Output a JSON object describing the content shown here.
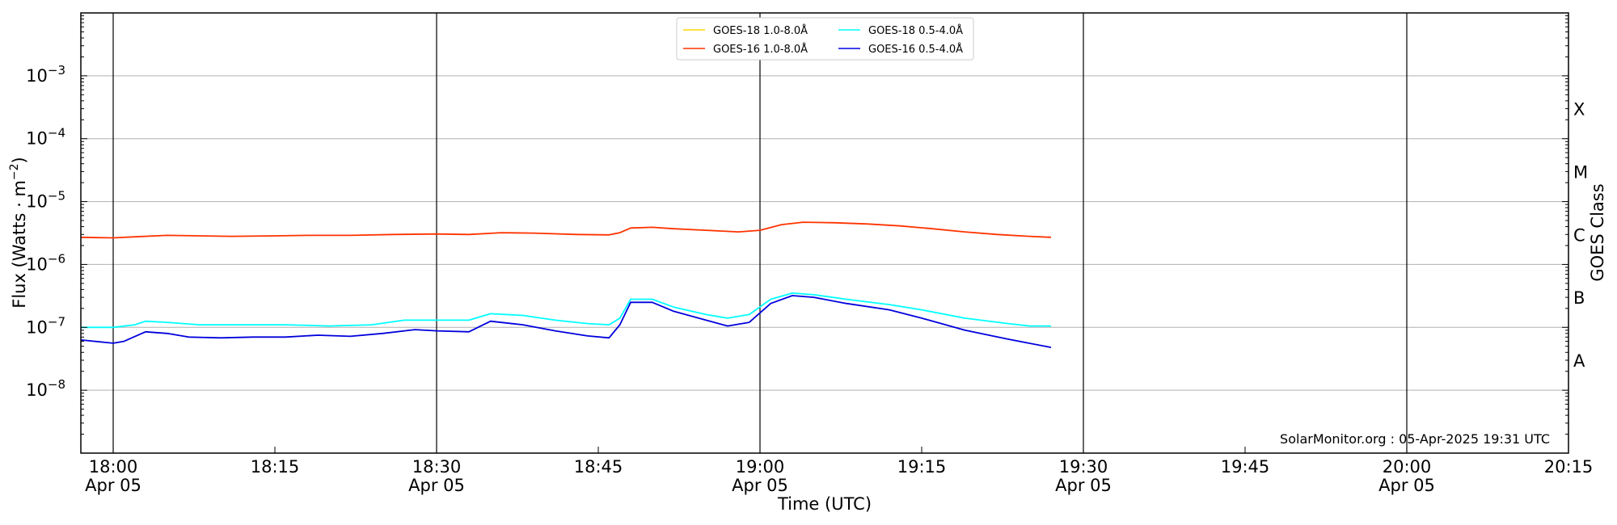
{
  "chart_data": {
    "type": "line",
    "xlabel": "Time (UTC)",
    "ylabel": "Flux (Watts · m",
    "ylabel_sup": "−2",
    "ylabel_close": ")",
    "right_label": "GOES Class",
    "y_scale": "log",
    "ylim": [
      1e-09,
      0.01
    ],
    "y_ticks": [
      {
        "value": 1e-08,
        "base": "10",
        "exp": "−8"
      },
      {
        "value": 1e-07,
        "base": "10",
        "exp": "−7"
      },
      {
        "value": 1e-06,
        "base": "10",
        "exp": "−6"
      },
      {
        "value": 1e-05,
        "base": "10",
        "exp": "−5"
      },
      {
        "value": 0.0001,
        "base": "10",
        "exp": "−4"
      },
      {
        "value": 0.001,
        "base": "10",
        "exp": "−3"
      }
    ],
    "xlim": [
      "17:57",
      "20:15"
    ],
    "x_ticks": [
      {
        "time": "18:00",
        "line1": "18:00",
        "line2": "Apr 05"
      },
      {
        "time": "18:15",
        "line1": "18:15",
        "line2": ""
      },
      {
        "time": "18:30",
        "line1": "18:30",
        "line2": "Apr 05"
      },
      {
        "time": "18:45",
        "line1": "18:45",
        "line2": ""
      },
      {
        "time": "19:00",
        "line1": "19:00",
        "line2": "Apr 05"
      },
      {
        "time": "19:15",
        "line1": "19:15",
        "line2": ""
      },
      {
        "time": "19:30",
        "line1": "19:30",
        "line2": "Apr 05"
      },
      {
        "time": "19:45",
        "line1": "19:45",
        "line2": ""
      },
      {
        "time": "20:00",
        "line1": "20:00",
        "line2": "Apr 05"
      },
      {
        "time": "20:15",
        "line1": "20:15",
        "line2": ""
      }
    ],
    "vertical_lines": [
      "18:00",
      "18:30",
      "19:00",
      "19:30",
      "20:00"
    ],
    "goes_classes": [
      {
        "label": "A",
        "flux": 3e-08
      },
      {
        "label": "B",
        "flux": 3e-07
      },
      {
        "label": "C",
        "flux": 3e-06
      },
      {
        "label": "M",
        "flux": 3e-05
      },
      {
        "label": "X",
        "flux": 0.0003
      }
    ],
    "grid": "horizontal",
    "legend_position": "top-center",
    "annotation": "SolarMonitor.org : 05-Apr-2025 19:31 UTC",
    "series": [
      {
        "name": "GOES-18 1.0-8.0Å",
        "color": "#ffd700",
        "points": []
      },
      {
        "name": "GOES-16 1.0-8.0Å",
        "color": "#ff3300",
        "points": [
          [
            "17:57",
            2.7e-06
          ],
          [
            "18:00",
            2.65e-06
          ],
          [
            "18:02",
            2.75e-06
          ],
          [
            "18:05",
            2.9e-06
          ],
          [
            "18:08",
            2.85e-06
          ],
          [
            "18:11",
            2.8e-06
          ],
          [
            "18:15",
            2.85e-06
          ],
          [
            "18:18",
            2.9e-06
          ],
          [
            "18:22",
            2.9e-06
          ],
          [
            "18:26",
            3e-06
          ],
          [
            "18:30",
            3.05e-06
          ],
          [
            "18:33",
            3e-06
          ],
          [
            "18:36",
            3.2e-06
          ],
          [
            "18:39",
            3.15e-06
          ],
          [
            "18:43",
            3e-06
          ],
          [
            "18:46",
            2.95e-06
          ],
          [
            "18:47",
            3.2e-06
          ],
          [
            "18:48",
            3.8e-06
          ],
          [
            "18:50",
            3.9e-06
          ],
          [
            "18:52",
            3.7e-06
          ],
          [
            "18:55",
            3.5e-06
          ],
          [
            "18:58",
            3.3e-06
          ],
          [
            "19:00",
            3.5e-06
          ],
          [
            "19:02",
            4.3e-06
          ],
          [
            "19:04",
            4.7e-06
          ],
          [
            "19:07",
            4.6e-06
          ],
          [
            "19:10",
            4.4e-06
          ],
          [
            "19:13",
            4.1e-06
          ],
          [
            "19:16",
            3.7e-06
          ],
          [
            "19:19",
            3.3e-06
          ],
          [
            "19:22",
            3e-06
          ],
          [
            "19:25",
            2.8e-06
          ],
          [
            "19:27",
            2.7e-06
          ]
        ]
      },
      {
        "name": "GOES-18 0.5-4.0Å",
        "color": "#00ffff",
        "points": [
          [
            "17:57",
            1e-07
          ],
          [
            "18:00",
            1e-07
          ],
          [
            "18:02",
            1.1e-07
          ],
          [
            "18:03",
            1.25e-07
          ],
          [
            "18:05",
            1.2e-07
          ],
          [
            "18:08",
            1.1e-07
          ],
          [
            "18:12",
            1.1e-07
          ],
          [
            "18:16",
            1.1e-07
          ],
          [
            "18:20",
            1.05e-07
          ],
          [
            "18:24",
            1.1e-07
          ],
          [
            "18:27",
            1.3e-07
          ],
          [
            "18:30",
            1.3e-07
          ],
          [
            "18:33",
            1.3e-07
          ],
          [
            "18:35",
            1.65e-07
          ],
          [
            "18:38",
            1.55e-07
          ],
          [
            "18:41",
            1.3e-07
          ],
          [
            "18:44",
            1.15e-07
          ],
          [
            "18:46",
            1.1e-07
          ],
          [
            "18:47",
            1.4e-07
          ],
          [
            "18:48",
            2.8e-07
          ],
          [
            "18:50",
            2.8e-07
          ],
          [
            "18:52",
            2.1e-07
          ],
          [
            "18:55",
            1.6e-07
          ],
          [
            "18:57",
            1.4e-07
          ],
          [
            "18:59",
            1.6e-07
          ],
          [
            "19:01",
            2.8e-07
          ],
          [
            "19:03",
            3.5e-07
          ],
          [
            "19:05",
            3.3e-07
          ],
          [
            "19:08",
            2.8e-07
          ],
          [
            "19:12",
            2.3e-07
          ],
          [
            "19:15",
            1.9e-07
          ],
          [
            "19:19",
            1.4e-07
          ],
          [
            "19:23",
            1.15e-07
          ],
          [
            "19:25",
            1.05e-07
          ],
          [
            "19:27",
            1.05e-07
          ]
        ]
      },
      {
        "name": "GOES-16 0.5-4.0Å",
        "color": "#0000dd",
        "points": [
          [
            "17:57",
            6.3e-08
          ],
          [
            "18:00",
            5.6e-08
          ],
          [
            "18:01",
            6e-08
          ],
          [
            "18:03",
            8.5e-08
          ],
          [
            "18:05",
            8e-08
          ],
          [
            "18:07",
            7e-08
          ],
          [
            "18:10",
            6.8e-08
          ],
          [
            "18:13",
            7e-08
          ],
          [
            "18:16",
            7e-08
          ],
          [
            "18:19",
            7.5e-08
          ],
          [
            "18:22",
            7.2e-08
          ],
          [
            "18:25",
            8e-08
          ],
          [
            "18:28",
            9.2e-08
          ],
          [
            "18:30",
            8.8e-08
          ],
          [
            "18:33",
            8.5e-08
          ],
          [
            "18:35",
            1.25e-07
          ],
          [
            "18:38",
            1.1e-07
          ],
          [
            "18:41",
            8.8e-08
          ],
          [
            "18:44",
            7.3e-08
          ],
          [
            "18:46",
            6.8e-08
          ],
          [
            "18:47",
            1.1e-07
          ],
          [
            "18:48",
            2.5e-07
          ],
          [
            "18:50",
            2.5e-07
          ],
          [
            "18:52",
            1.8e-07
          ],
          [
            "18:55",
            1.3e-07
          ],
          [
            "18:57",
            1.05e-07
          ],
          [
            "18:59",
            1.2e-07
          ],
          [
            "19:01",
            2.4e-07
          ],
          [
            "19:03",
            3.2e-07
          ],
          [
            "19:05",
            3e-07
          ],
          [
            "19:08",
            2.4e-07
          ],
          [
            "19:12",
            1.9e-07
          ],
          [
            "19:15",
            1.4e-07
          ],
          [
            "19:19",
            9e-08
          ],
          [
            "19:23",
            6.5e-08
          ],
          [
            "19:27",
            4.8e-08
          ]
        ]
      }
    ]
  }
}
